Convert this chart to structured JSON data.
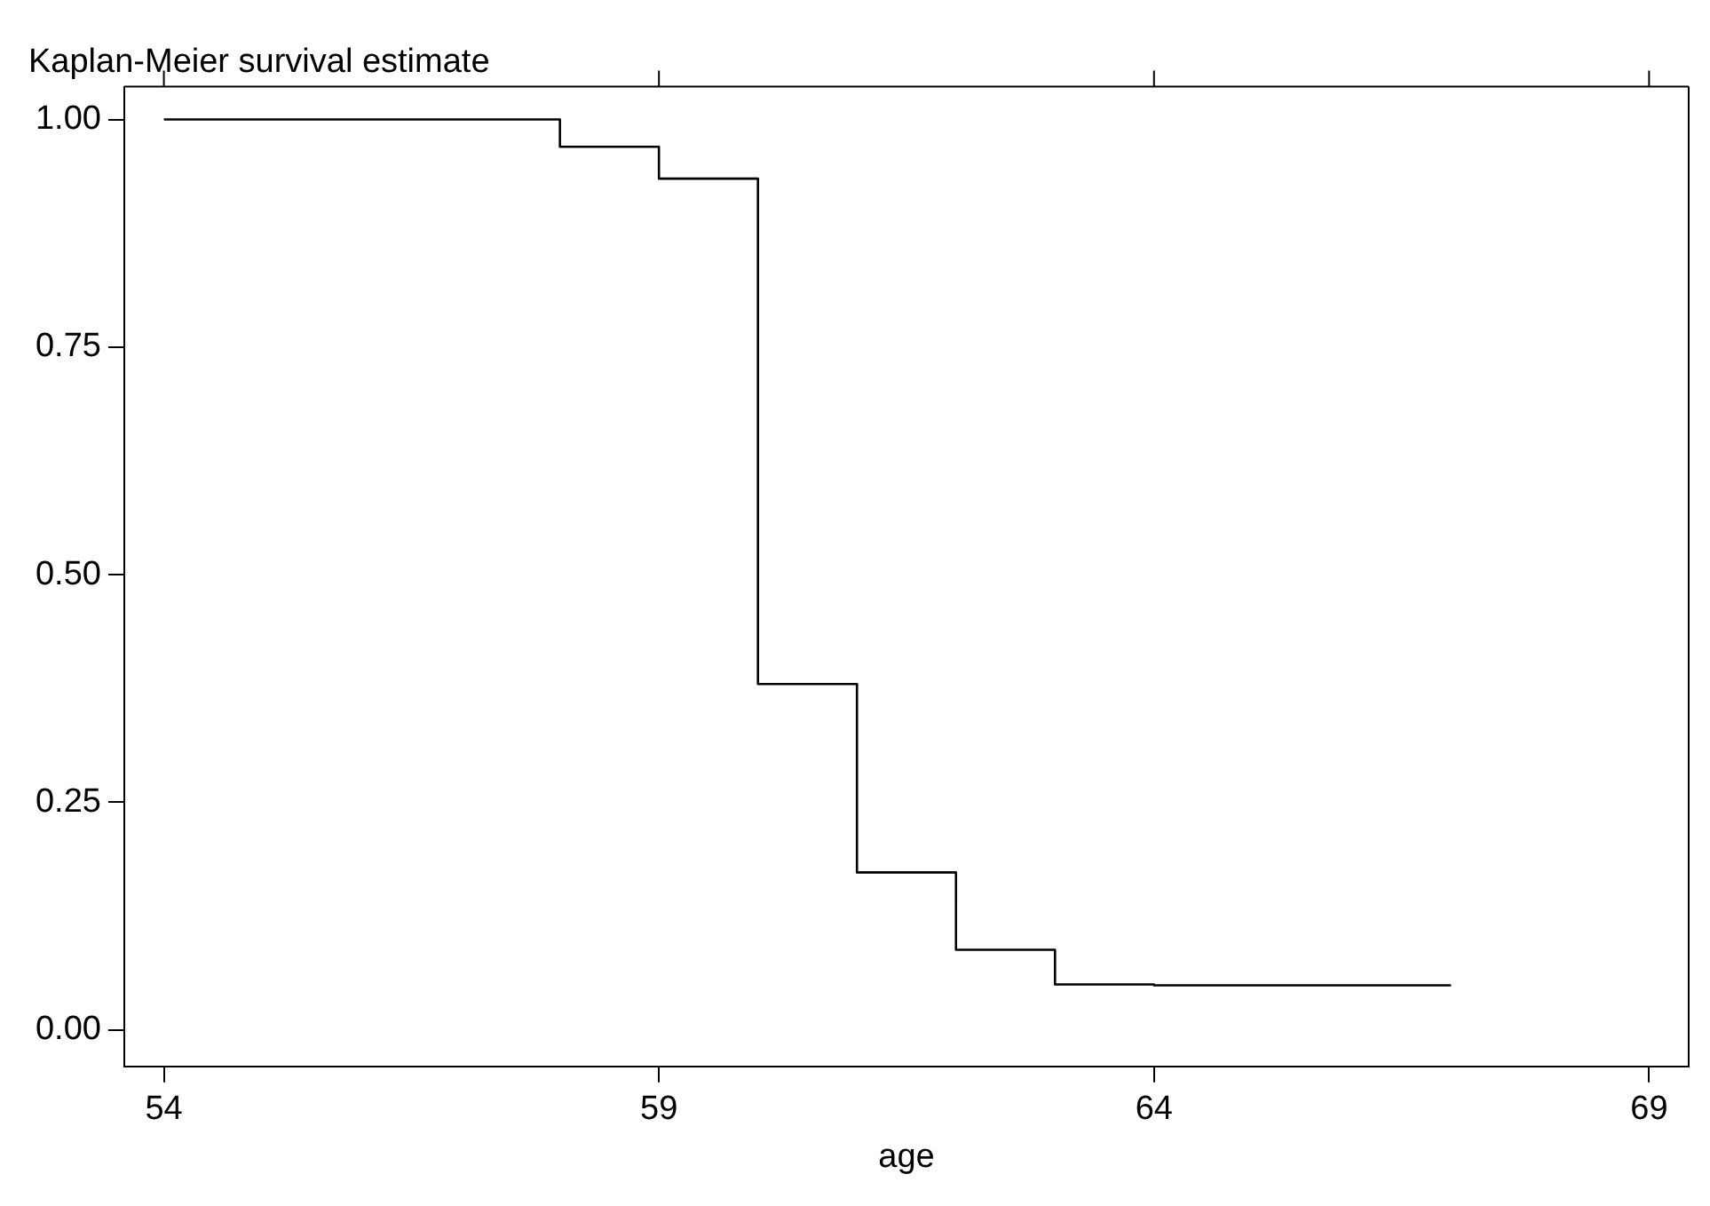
{
  "chart_data": {
    "type": "step",
    "title": "Kaplan-Meier survival estimate",
    "xlabel": "age",
    "x": [
      54,
      58,
      59,
      60,
      61,
      62,
      63,
      64,
      67
    ],
    "values": [
      1,
      0.97,
      0.935,
      0.38,
      0.173,
      0.088,
      0.05,
      0.049,
      0.049
    ],
    "color": "#000000",
    "xlim": [
      53.6,
      69.4
    ],
    "xticks": [
      54,
      59,
      64,
      69
    ],
    "ylim": [
      -0.04,
      1.036
    ],
    "yticks": [
      {
        "value": 0,
        "label": "0.00"
      },
      {
        "value": 0.25,
        "label": "0.25"
      },
      {
        "value": 0.5,
        "label": "0.50"
      },
      {
        "value": 0.75,
        "label": "0.75"
      },
      {
        "value": 1,
        "label": "1.00"
      }
    ],
    "grid": false,
    "legend": false,
    "marker": "none",
    "line_style": "solid"
  }
}
